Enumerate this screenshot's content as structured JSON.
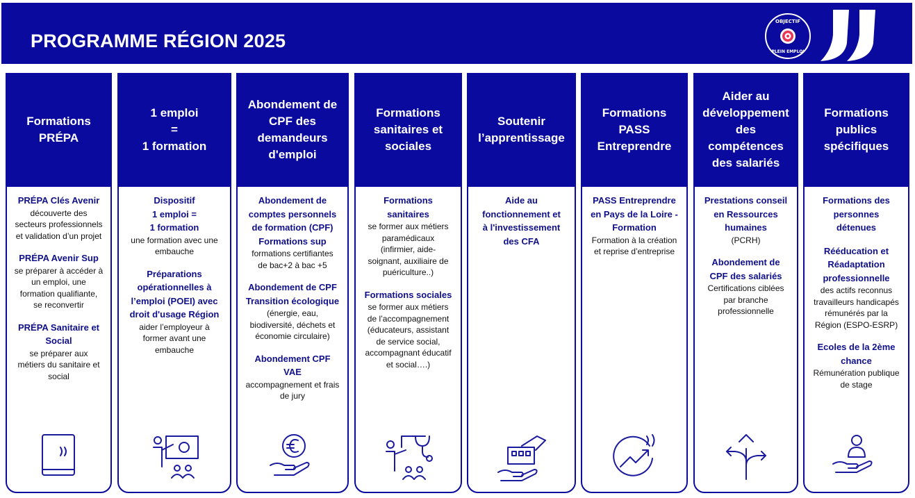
{
  "header": {
    "title": "PROGRAMME RÉGION 2025",
    "badge_text": "OBJECTIF PLEIN EMPLOI",
    "colors": {
      "primary": "#0a0a9e",
      "accent": "#e8365a"
    }
  },
  "columns": [
    {
      "title": [
        "Formations",
        "PRÉPA"
      ],
      "icon": "book-icon",
      "blocks": [
        {
          "bold": [
            "PRÉPA Clés Avenir"
          ],
          "text": [
            "découverte des",
            "secteurs professionnels",
            "et validation d’un projet"
          ]
        },
        {
          "bold": [
            "PRÉPA Avenir Sup"
          ],
          "text": [
            "se préparer à accéder à",
            "un emploi, une",
            "formation qualifiante,",
            "se reconvertir"
          ]
        },
        {
          "bold": [
            "PRÉPA Sanitaire et",
            "Social"
          ],
          "text": [
            "se préparer aux",
            "métiers du sanitaire et",
            "social"
          ]
        }
      ]
    },
    {
      "title": [
        "1 emploi",
        "=",
        "1 formation"
      ],
      "icon": "teacher-icon",
      "blocks": [
        {
          "bold": [
            "Dispositif",
            "1 emploi =",
            "1 formation"
          ],
          "text": [
            "une formation avec une",
            "embauche"
          ]
        },
        {
          "bold": [
            "Préparations",
            "opérationnelles  à",
            "l’emploi  (POEI) avec",
            "droit d'usage Région"
          ],
          "text": [
            "aider l’employeur à",
            "former avant une",
            "embauche"
          ]
        }
      ]
    },
    {
      "title": [
        "Abondement de",
        "CPF  des",
        "demandeurs",
        "d'emploi"
      ],
      "icon": "euro-hand-icon",
      "blocks": [
        {
          "bold": [
            "Abondement de",
            "comptes personnels",
            "de formation (CPF)",
            "Formations sup"
          ],
          "text": [
            "formations certifiantes",
            "de bac+2 à bac +5"
          ]
        },
        {
          "bold": [
            "Abondement de CPF",
            "Transition écologique"
          ],
          "text": [
            "(énergie, eau,",
            "biodiversité, déchets et",
            "économie circulaire)"
          ]
        },
        {
          "bold": [
            "Abondement CPF",
            "VAE"
          ],
          "text": [
            "accompagnement et frais",
            "de jury"
          ]
        }
      ]
    },
    {
      "title": [
        "Formations",
        "sanitaires et",
        "sociales"
      ],
      "icon": "stethoscope-teacher-icon",
      "blocks": [
        {
          "bold": [
            "Formations",
            "sanitaires"
          ],
          "text": [
            "se former aux métiers",
            "paramédicaux",
            "(infirmier, aide-",
            "soignant, auxiliaire de",
            "puériculture..)"
          ]
        },
        {
          "bold": [
            "Formations sociales"
          ],
          "text": [
            "se former aux métiers",
            "de l’accompagnement",
            "(éducateurs, assistant",
            "de service social,",
            "accompagnant éducatif",
            "et social….)"
          ]
        }
      ]
    },
    {
      "title": [
        "Soutenir",
        "l’apprentissage"
      ],
      "icon": "building-hands-icon",
      "blocks": [
        {
          "bold": [
            "Aide au",
            "fonctionnement et",
            "à l'investissement",
            "des CFA"
          ],
          "text": []
        }
      ]
    },
    {
      "title": [
        "Formations",
        "PASS",
        "Entreprendre"
      ],
      "icon": "growth-chart-icon",
      "blocks": [
        {
          "bold": [
            "PASS Entreprendre",
            "en Pays de la Loire -",
            "Formation"
          ],
          "text": [
            "Formation à la création",
            "et reprise d’entreprise"
          ]
        }
      ]
    },
    {
      "title": [
        "Aider au",
        "développement",
        "des",
        "compétences",
        "des salariés"
      ],
      "icon": "arrows-directions-icon",
      "blocks": [
        {
          "bold": [
            "Prestations conseil",
            "en Ressources",
            "humaines"
          ],
          "text": [
            "(PCRH)"
          ]
        },
        {
          "bold": [
            "Abondement de",
            "CPF des salariés"
          ],
          "text": [
            "Certifications ciblées",
            "par branche",
            "professionnelle"
          ]
        }
      ]
    },
    {
      "title": [
        "Formations",
        "publics",
        "spécifiques"
      ],
      "icon": "person-hand-icon",
      "blocks": [
        {
          "bold": [
            "Formations des",
            "personnes",
            "détenues"
          ],
          "text": []
        },
        {
          "bold": [
            "Rééducation et",
            "Réadaptation",
            "professionnelle"
          ],
          "text": [
            "des actifs reconnus",
            "travailleurs handicapés",
            "rémunérés par la",
            "Région (ESPO-ESRP)"
          ]
        },
        {
          "bold": [
            "Ecoles de la 2ème",
            "chance"
          ],
          "text": [
            "Rémunération publique",
            "de stage"
          ]
        }
      ]
    }
  ]
}
